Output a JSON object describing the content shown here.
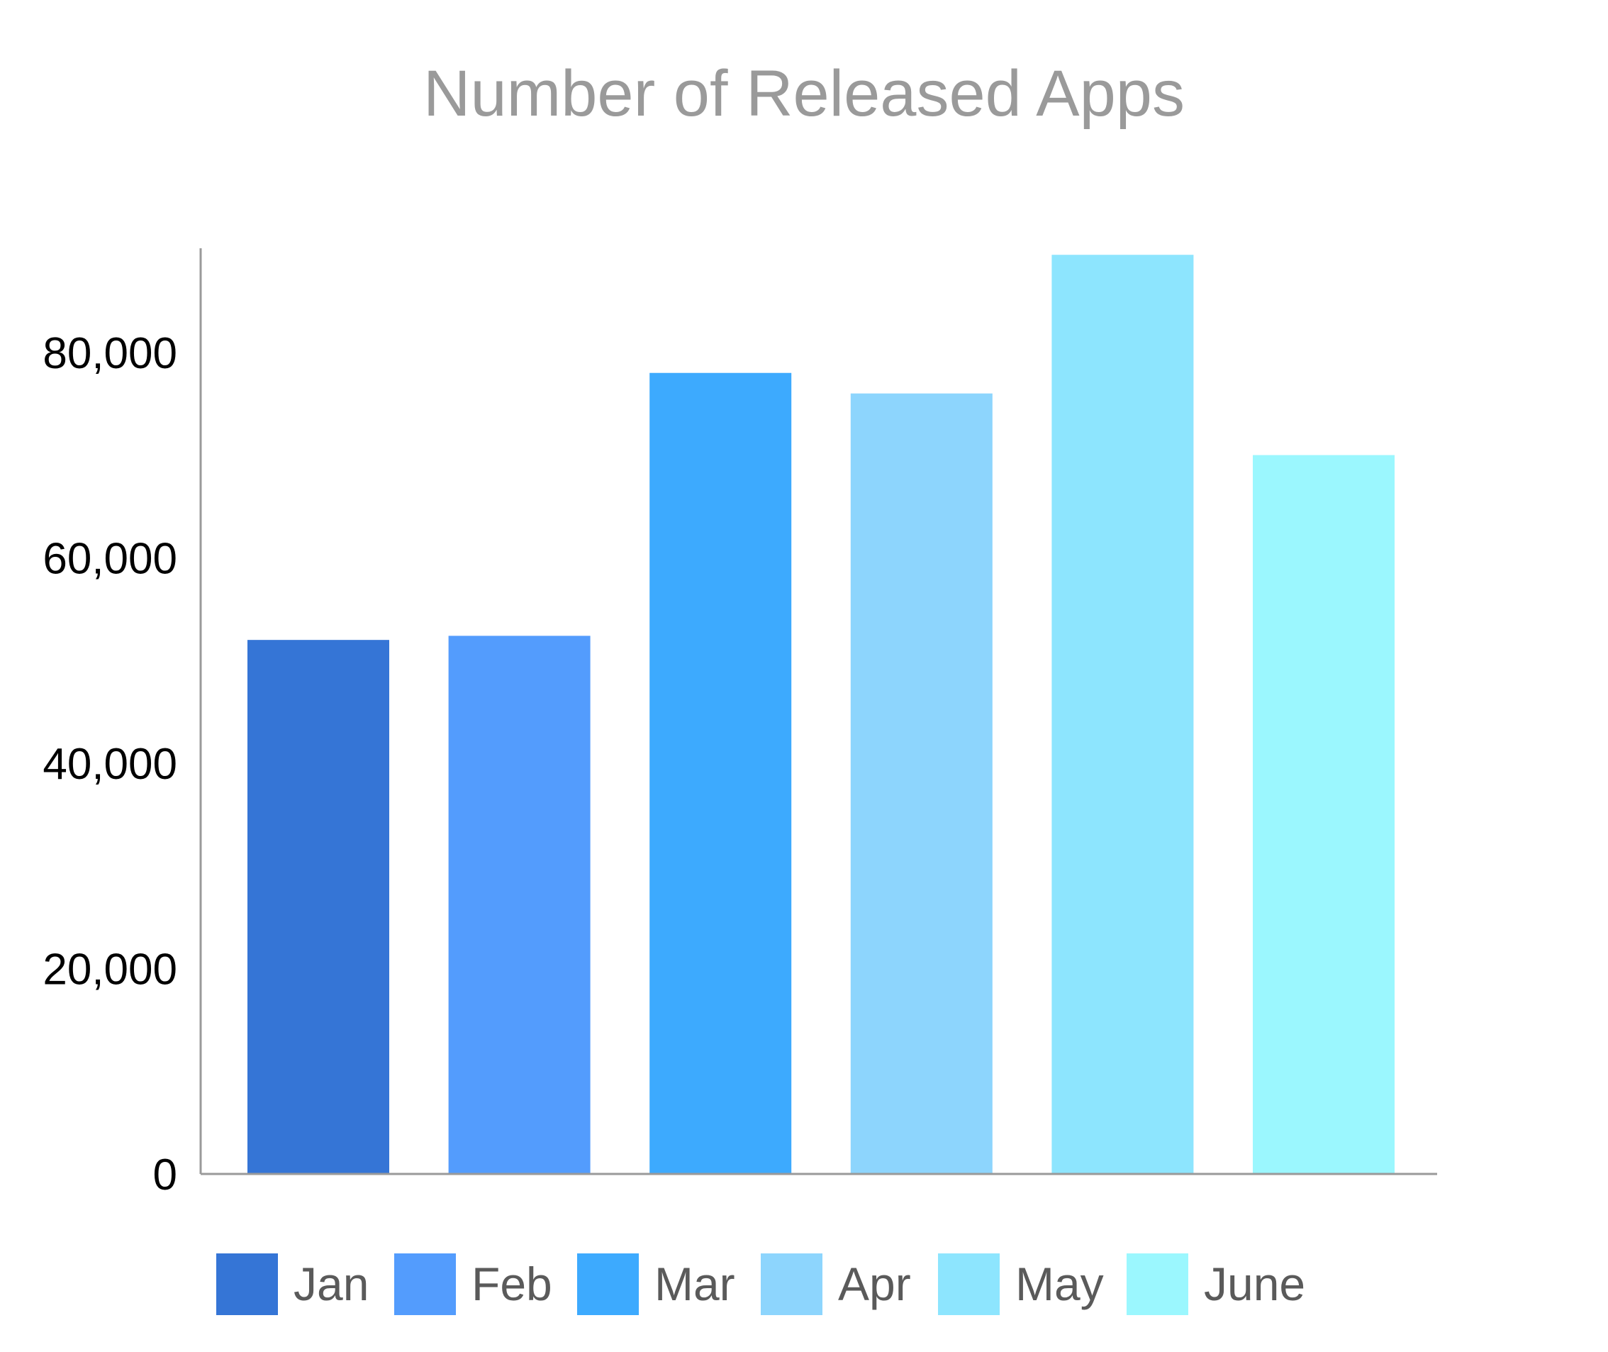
{
  "chart_data": {
    "type": "bar",
    "title": "Number of Released Apps",
    "categories": [
      "Jan",
      "Feb",
      "Mar",
      "Apr",
      "May",
      "June"
    ],
    "values": [
      52000,
      52400,
      78000,
      76000,
      89500,
      70000
    ],
    "colors": [
      "#3575D6",
      "#539CFD",
      "#3DAAFE",
      "#8DD5FD",
      "#8DE5FE",
      "#9BF7FE"
    ],
    "yticks": [
      0,
      20000,
      40000,
      60000,
      80000
    ],
    "ytick_labels": [
      "0",
      "20,000",
      "40,000",
      "60,000",
      "80,000"
    ],
    "ylim": [
      0,
      90000
    ],
    "xlabel": "",
    "ylabel": "",
    "legend": {
      "position": "bottom",
      "entries": [
        "Jan",
        "Feb",
        "Mar",
        "Apr",
        "May",
        "June"
      ]
    },
    "grid": false
  }
}
